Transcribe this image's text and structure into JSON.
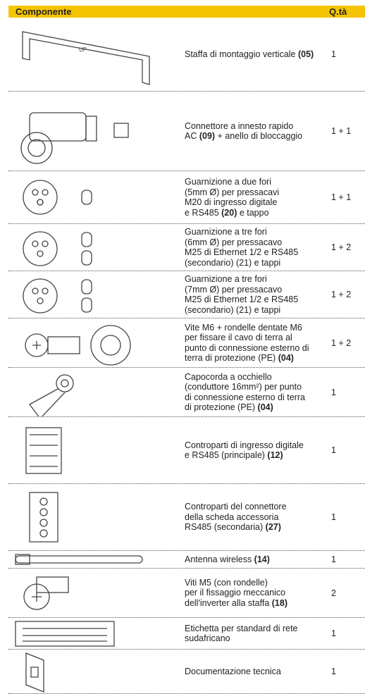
{
  "header": {
    "component": "Componente",
    "quantity": "Q.tà"
  },
  "rows": [
    {
      "lines": [
        [
          "Staffa di montaggio verticale ",
          {
            "text": "(05)",
            "bold": true
          }
        ]
      ],
      "quantity": "1"
    },
    {
      "lines": [
        [
          "Connettore a innesto rapido"
        ],
        [
          "AC ",
          {
            "text": "(09)",
            "bold": true
          },
          " + anello di bloccaggio"
        ]
      ],
      "quantity": "1 + 1"
    },
    {
      "lines": [
        [
          "Guarnizione a due fori"
        ],
        [
          "(5mm Ø) per pressacavi"
        ],
        [
          "M20 di ingresso digitale"
        ],
        [
          "e RS485 ",
          {
            "text": "(20)",
            "bold": true
          },
          " e tappo"
        ]
      ],
      "quantity": "1 + 1"
    },
    {
      "lines": [
        [
          "Guarnizione a tre fori"
        ],
        [
          "(6mm Ø) per pressacavo"
        ],
        [
          "M25 di Ethernet 1/2 e RS485"
        ],
        [
          "(secondario) (21) e tappi"
        ]
      ],
      "quantity": "1 + 2"
    },
    {
      "lines": [
        [
          "Guarnizione a tre fori"
        ],
        [
          "(7mm Ø) per pressacavo"
        ],
        [
          "M25 di Ethernet 1/2 e RS485"
        ],
        [
          "(secondario) (21) e tappi"
        ]
      ],
      "quantity": "1 + 2"
    },
    {
      "lines": [
        [
          "Vite M6 + rondelle dentate M6"
        ],
        [
          "per fissare il cavo di terra al"
        ],
        [
          "punto di connessione esterno di"
        ],
        [
          "terra di protezione (PE) ",
          {
            "text": "(04)",
            "bold": true
          }
        ]
      ],
      "quantity": "1 + 2"
    },
    {
      "lines": [
        [
          "Capocorda a occhiello"
        ],
        [
          "(conduttore 16mm²) per punto"
        ],
        [
          "di connessione esterno di terra"
        ],
        [
          "di protezione (PE) ",
          {
            "text": "(04)",
            "bold": true
          }
        ]
      ],
      "quantity": "1"
    },
    {
      "lines": [
        [
          "Controparti di ingresso digitale"
        ],
        [
          "e RS485 (principale) ",
          {
            "text": "(12)",
            "bold": true
          }
        ]
      ],
      "quantity": "1"
    },
    {
      "lines": [
        [
          "Controparti del connettore"
        ],
        [
          "della scheda accessoria"
        ],
        [
          "RS485 (secondaria) ",
          {
            "text": "(27)",
            "bold": true
          }
        ]
      ],
      "quantity": "1"
    },
    {
      "lines": [
        [
          "Antenna wireless ",
          {
            "text": "(14)",
            "bold": true
          }
        ]
      ],
      "quantity": "1"
    },
    {
      "lines": [
        [
          "Viti M5 (con rondelle)"
        ],
        [
          "per il fissaggio meccanico"
        ],
        [
          "dell'inverter alla staffa ",
          {
            "text": "(18)",
            "bold": true
          }
        ]
      ],
      "quantity": "2"
    },
    {
      "lines": [
        [
          "Etichetta per standard di rete"
        ],
        [
          "sudafricano"
        ]
      ],
      "quantity": "1"
    },
    {
      "lines": [
        [
          "Documentazione tecnica"
        ]
      ],
      "quantity": "1"
    }
  ]
}
